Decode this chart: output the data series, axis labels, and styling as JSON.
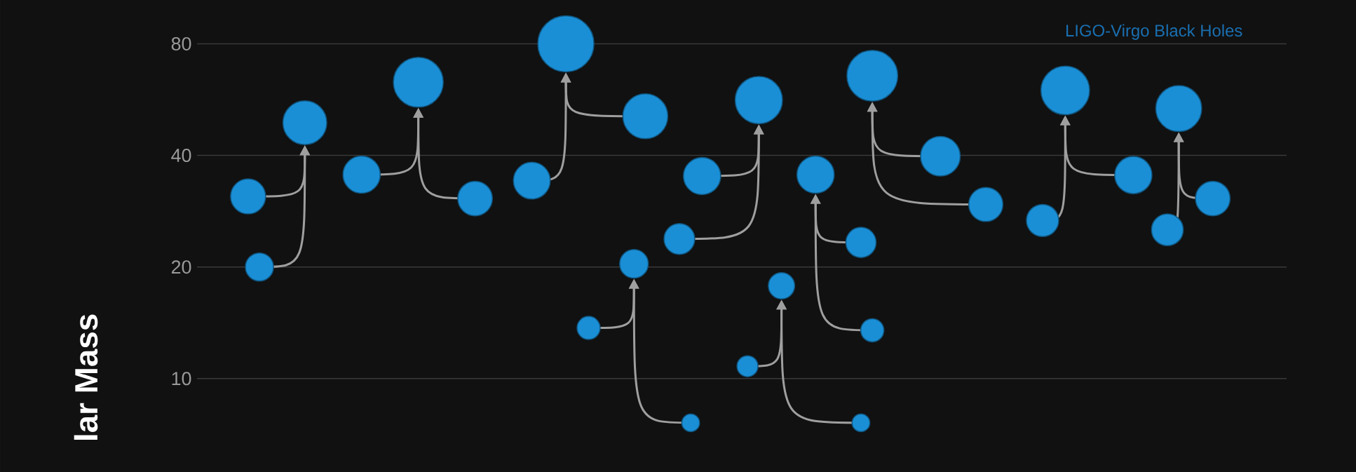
{
  "chart_data": {
    "type": "bubble",
    "ylabel": "lar Mass",
    "annotations": [
      "LIGO-Virgo Black Holes"
    ],
    "log": "y",
    "grid": "y",
    "tick_labels": "y",
    "ylim": [
      5.6,
      105
    ],
    "yticks": [
      10,
      20,
      40,
      80
    ],
    "categories": [
      null,
      null,
      null,
      null,
      null,
      null,
      null,
      null,
      null,
      null,
      null,
      null,
      null,
      null,
      null,
      null,
      null,
      null,
      null,
      null,
      null,
      null,
      null,
      null,
      null,
      null,
      null,
      null,
      null,
      null,
      null,
      null,
      null,
      null,
      null,
      null,
      null,
      null,
      null,
      null,
      null,
      null,
      null,
      null,
      null,
      null,
      null,
      null,
      null,
      null,
      null,
      null,
      null,
      null,
      null,
      null,
      null,
      null,
      null,
      null,
      null,
      null,
      null,
      null,
      null,
      null,
      null,
      null,
      null,
      null,
      null,
      null,
      null,
      null,
      null,
      null,
      null,
      null,
      null,
      null,
      null,
      null,
      null,
      null,
      null,
      null,
      null,
      null,
      null,
      null,
      null,
      null,
      null,
      null,
      null,
      null
    ],
    "series": [
      {
        "color": "#1a8fd6",
        "values": [
          null,
          null,
          null,
          null,
          31,
          20,
          null,
          null,
          null,
          49,
          null,
          null,
          null,
          null,
          null,
          null,
          null,
          null,
          null,
          null,
          null,
          null,
          null,
          null,
          null,
          null,
          null,
          null,
          null,
          null,
          null,
          null,
          null,
          null,
          null,
          null,
          null,
          null,
          null,
          null,
          null,
          null,
          null,
          null,
          null,
          null,
          null,
          null,
          null,
          null,
          null,
          null,
          null,
          null,
          null,
          null,
          null,
          null,
          null,
          null,
          null,
          null,
          null,
          null,
          null,
          null,
          null,
          null,
          null,
          null,
          null,
          null,
          null,
          null,
          null,
          null,
          null,
          null,
          null,
          null,
          null,
          null,
          null,
          null,
          null,
          null,
          null,
          null,
          null,
          null,
          null,
          null,
          null,
          null,
          null,
          null
        ],
        "sizes": [
          null,
          null,
          null,
          null,
          0.39,
          0.25,
          null,
          null,
          null,
          0.61,
          null,
          null,
          null,
          null,
          null,
          null,
          null,
          null,
          null,
          null,
          null,
          null,
          null,
          null,
          null,
          null,
          null,
          null,
          null,
          null,
          null,
          null,
          null,
          null,
          null,
          null,
          null,
          null,
          null,
          null,
          null,
          null,
          null,
          null,
          null,
          null,
          null,
          null,
          null,
          null,
          null,
          null,
          null,
          null,
          null,
          null,
          null,
          null,
          null,
          null,
          null,
          null,
          null,
          null,
          null,
          null,
          null,
          null,
          null,
          null,
          null,
          null,
          null,
          null,
          null,
          null,
          null,
          null,
          null,
          null,
          null,
          null,
          null,
          null,
          null,
          null,
          null,
          null,
          null,
          null,
          null,
          null,
          null,
          null,
          null,
          null
        ]
      },
      {
        "color": "#1a8fd6",
        "values": [
          null,
          null,
          null,
          null,
          null,
          null,
          null,
          null,
          null,
          null,
          null,
          null,
          null,
          null,
          35.5,
          null,
          null,
          null,
          null,
          63,
          null,
          null,
          null,
          null,
          30.6,
          null,
          null,
          null,
          null,
          null,
          null,
          null,
          null,
          null,
          null,
          null,
          null,
          null,
          null,
          null,
          null,
          null,
          null,
          null,
          null,
          null,
          null,
          null,
          null,
          null,
          null,
          null,
          null,
          null,
          null,
          null,
          null,
          null,
          null,
          null,
          null,
          null,
          null,
          null,
          null,
          null,
          null,
          null,
          null,
          null,
          null,
          null,
          null,
          null,
          null,
          null,
          null,
          null,
          null,
          null,
          null,
          null,
          null,
          null,
          null,
          null,
          null,
          null,
          null,
          null,
          null,
          null,
          null,
          null,
          null,
          null
        ],
        "sizes": [
          null,
          null,
          null,
          null,
          null,
          null,
          null,
          null,
          null,
          null,
          null,
          null,
          null,
          null,
          0.44,
          null,
          null,
          null,
          null,
          0.79,
          null,
          null,
          null,
          null,
          0.38,
          null,
          null,
          null,
          null,
          null,
          null,
          null,
          null,
          null,
          null,
          null,
          null,
          null,
          null,
          null,
          null,
          null,
          null,
          null,
          null,
          null,
          null,
          null,
          null,
          null,
          null,
          null,
          null,
          null,
          null,
          null,
          null,
          null,
          null,
          null,
          null,
          null,
          null,
          null,
          null,
          null,
          null,
          null,
          null,
          null,
          null,
          null,
          null,
          null,
          null,
          null,
          null,
          null,
          null,
          null,
          null,
          null,
          null,
          null,
          null,
          null,
          null,
          null,
          null,
          null,
          null,
          null,
          null,
          null,
          null,
          null
        ]
      },
      {
        "color": "#1a8fd6",
        "values": [
          null,
          null,
          null,
          null,
          null,
          null,
          null,
          null,
          null,
          null,
          null,
          null,
          null,
          null,
          null,
          null,
          null,
          null,
          null,
          null,
          null,
          null,
          null,
          null,
          null,
          null,
          null,
          null,
          null,
          34.2,
          null,
          null,
          80,
          null,
          null,
          null,
          null,
          null,
          null,
          51,
          null,
          null,
          null,
          null,
          null,
          null,
          null,
          null,
          null,
          null,
          null,
          null,
          null,
          null,
          null,
          null,
          null,
          null,
          null,
          null,
          null,
          null,
          null,
          null,
          null,
          null,
          null,
          null,
          null,
          null,
          null,
          null,
          null,
          null,
          null,
          null,
          null,
          null,
          null,
          null,
          null,
          null,
          null,
          null,
          null,
          null,
          null,
          null,
          null,
          null,
          null,
          null,
          null,
          null,
          null,
          null
        ],
        "sizes": [
          null,
          null,
          null,
          null,
          null,
          null,
          null,
          null,
          null,
          null,
          null,
          null,
          null,
          null,
          null,
          null,
          null,
          null,
          null,
          null,
          null,
          null,
          null,
          null,
          null,
          null,
          null,
          null,
          null,
          0.43,
          null,
          null,
          1.0,
          null,
          null,
          null,
          null,
          null,
          null,
          0.64,
          null,
          null,
          null,
          null,
          null,
          null,
          null,
          null,
          null,
          null,
          null,
          null,
          null,
          null,
          null,
          null,
          null,
          null,
          null,
          null,
          null,
          null,
          null,
          null,
          null,
          null,
          null,
          null,
          null,
          null,
          null,
          null,
          null,
          null,
          null,
          null,
          null,
          null,
          null,
          null,
          null,
          null,
          null,
          null,
          null,
          null,
          null,
          null,
          null,
          null,
          null,
          null,
          null,
          null,
          null,
          null
        ]
      },
      {
        "color": "#1a8fd6",
        "values": [
          null,
          null,
          null,
          null,
          null,
          null,
          null,
          null,
          null,
          null,
          null,
          null,
          null,
          null,
          null,
          null,
          null,
          null,
          null,
          null,
          null,
          null,
          null,
          null,
          null,
          null,
          null,
          null,
          null,
          null,
          null,
          null,
          null,
          null,
          13.7,
          null,
          null,
          null,
          20.4,
          null,
          null,
          null,
          null,
          7.6,
          null,
          null,
          null,
          null,
          null,
          null,
          null,
          null,
          null,
          null,
          null,
          null,
          null,
          null,
          null,
          null,
          null,
          null,
          null,
          null,
          null,
          null,
          null,
          null,
          null,
          null,
          null,
          null,
          null,
          null,
          null,
          null,
          null,
          null,
          null,
          null,
          null,
          null,
          null,
          null,
          null,
          null,
          null,
          null,
          null,
          null,
          null,
          null,
          null,
          null,
          null,
          null
        ],
        "sizes": [
          null,
          null,
          null,
          null,
          null,
          null,
          null,
          null,
          null,
          null,
          null,
          null,
          null,
          null,
          null,
          null,
          null,
          null,
          null,
          null,
          null,
          null,
          null,
          null,
          null,
          null,
          null,
          null,
          null,
          null,
          null,
          null,
          null,
          null,
          0.17,
          null,
          null,
          null,
          0.26,
          null,
          null,
          null,
          null,
          0.1,
          null,
          null,
          null,
          null,
          null,
          null,
          null,
          null,
          null,
          null,
          null,
          null,
          null,
          null,
          null,
          null,
          null,
          null,
          null,
          null,
          null,
          null,
          null,
          null,
          null,
          null,
          null,
          null,
          null,
          null,
          null,
          null,
          null,
          null,
          null,
          null,
          null,
          null,
          null,
          null,
          null,
          null,
          null,
          null,
          null,
          null,
          null,
          null,
          null,
          null,
          null,
          null
        ]
      },
      {
        "color": "#1a8fd6",
        "values": [
          null,
          null,
          null,
          null,
          null,
          null,
          null,
          null,
          null,
          null,
          null,
          null,
          null,
          null,
          null,
          null,
          null,
          null,
          null,
          null,
          null,
          null,
          null,
          null,
          null,
          null,
          null,
          null,
          null,
          null,
          null,
          null,
          null,
          null,
          null,
          null,
          null,
          null,
          null,
          null,
          null,
          null,
          23.8,
          null,
          35.2,
          null,
          null,
          null,
          null,
          56.4,
          null,
          null,
          null,
          null,
          null,
          null,
          null,
          null,
          null,
          null,
          null,
          null,
          null,
          null,
          null,
          null,
          null,
          null,
          null,
          null,
          null,
          null,
          null,
          null,
          null,
          null,
          null,
          null,
          null,
          null,
          null,
          null,
          null,
          null,
          null,
          null,
          null,
          null,
          null,
          null,
          null,
          null,
          null,
          null,
          null,
          null
        ],
        "sizes": [
          null,
          null,
          null,
          null,
          null,
          null,
          null,
          null,
          null,
          null,
          null,
          null,
          null,
          null,
          null,
          null,
          null,
          null,
          null,
          null,
          null,
          null,
          null,
          null,
          null,
          null,
          null,
          null,
          null,
          null,
          null,
          null,
          null,
          null,
          null,
          null,
          null,
          null,
          null,
          null,
          null,
          null,
          0.3,
          null,
          0.44,
          null,
          null,
          null,
          null,
          0.71,
          null,
          null,
          null,
          null,
          null,
          null,
          null,
          null,
          null,
          null,
          null,
          null,
          null,
          null,
          null,
          null,
          null,
          null,
          null,
          null,
          null,
          null,
          null,
          null,
          null,
          null,
          null,
          null,
          null,
          null,
          null,
          null,
          null,
          null,
          null,
          null,
          null,
          null,
          null,
          null,
          null,
          null,
          null,
          null,
          null,
          null
        ]
      },
      {
        "color": "#1a8fd6",
        "values": [
          null,
          null,
          null,
          null,
          null,
          null,
          null,
          null,
          null,
          null,
          null,
          null,
          null,
          null,
          null,
          null,
          null,
          null,
          null,
          null,
          null,
          null,
          null,
          null,
          null,
          null,
          null,
          null,
          null,
          null,
          null,
          null,
          null,
          null,
          null,
          null,
          null,
          null,
          null,
          null,
          null,
          null,
          null,
          null,
          null,
          null,
          null,
          null,
          10.8,
          null,
          null,
          17.8,
          null,
          null,
          null,
          null,
          null,
          null,
          7.6,
          null,
          null,
          null,
          null,
          null,
          null,
          null,
          null,
          null,
          null,
          null,
          null,
          null,
          null,
          null,
          null,
          null,
          null,
          null,
          null,
          null,
          null,
          null,
          null,
          null,
          null,
          null,
          null,
          null,
          null,
          null,
          null,
          null,
          null,
          null,
          null,
          null
        ],
        "sizes": [
          null,
          null,
          null,
          null,
          null,
          null,
          null,
          null,
          null,
          null,
          null,
          null,
          null,
          null,
          null,
          null,
          null,
          null,
          null,
          null,
          null,
          null,
          null,
          null,
          null,
          null,
          null,
          null,
          null,
          null,
          null,
          null,
          null,
          null,
          null,
          null,
          null,
          null,
          null,
          null,
          null,
          null,
          null,
          null,
          null,
          null,
          null,
          null,
          0.14,
          null,
          null,
          0.22,
          null,
          null,
          null,
          null,
          null,
          null,
          0.1,
          null,
          null,
          null,
          null,
          null,
          null,
          null,
          null,
          null,
          null,
          null,
          null,
          null,
          null,
          null,
          null,
          null,
          null,
          null,
          null,
          null,
          null,
          null,
          null,
          null,
          null,
          null,
          null,
          null,
          null,
          null,
          null,
          null,
          null,
          null,
          null,
          null
        ]
      },
      {
        "color": "#1a8fd6",
        "values": [
          null,
          null,
          null,
          null,
          null,
          null,
          null,
          null,
          null,
          null,
          null,
          null,
          null,
          null,
          null,
          null,
          null,
          null,
          null,
          null,
          null,
          null,
          null,
          null,
          null,
          null,
          null,
          null,
          null,
          null,
          null,
          null,
          null,
          null,
          null,
          null,
          null,
          null,
          null,
          null,
          null,
          null,
          null,
          null,
          null,
          null,
          null,
          null,
          null,
          null,
          null,
          null,
          null,
          null,
          35.5,
          null,
          null,
          null,
          23.3,
          13.5,
          null,
          null,
          null,
          null,
          null,
          null,
          null,
          null,
          null,
          null,
          null,
          null,
          null,
          null,
          null,
          null,
          null,
          null,
          null,
          null,
          null,
          null,
          null,
          null,
          null,
          null,
          null,
          null,
          null,
          null,
          null,
          null,
          null,
          null,
          null,
          null
        ],
        "sizes": [
          null,
          null,
          null,
          null,
          null,
          null,
          null,
          null,
          null,
          null,
          null,
          null,
          null,
          null,
          null,
          null,
          null,
          null,
          null,
          null,
          null,
          null,
          null,
          null,
          null,
          null,
          null,
          null,
          null,
          null,
          null,
          null,
          null,
          null,
          null,
          null,
          null,
          null,
          null,
          null,
          null,
          null,
          null,
          null,
          null,
          null,
          null,
          null,
          null,
          null,
          null,
          null,
          null,
          null,
          0.44,
          null,
          null,
          null,
          0.29,
          0.17,
          null,
          null,
          null,
          null,
          null,
          null,
          null,
          null,
          null,
          null,
          null,
          null,
          null,
          null,
          null,
          null,
          null,
          null,
          null,
          null,
          null,
          null,
          null,
          null,
          null,
          null,
          null,
          null,
          null,
          null,
          null,
          null,
          null,
          null,
          null,
          null
        ]
      },
      {
        "color": "#1a8fd6",
        "values": [
          null,
          null,
          null,
          null,
          null,
          null,
          null,
          null,
          null,
          null,
          null,
          null,
          null,
          null,
          null,
          null,
          null,
          null,
          null,
          null,
          null,
          null,
          null,
          null,
          null,
          null,
          null,
          null,
          null,
          null,
          null,
          null,
          null,
          null,
          null,
          null,
          null,
          null,
          null,
          null,
          null,
          null,
          null,
          null,
          null,
          null,
          null,
          null,
          null,
          null,
          null,
          null,
          null,
          null,
          null,
          null,
          null,
          null,
          null,
          65.6,
          null,
          null,
          null,
          null,
          null,
          39.8,
          null,
          null,
          null,
          29.5,
          null,
          null,
          null,
          null,
          null,
          null,
          null,
          null,
          null,
          null,
          null,
          null,
          null,
          null,
          null,
          null,
          null,
          null,
          null,
          null,
          null,
          null,
          null,
          null,
          null,
          null
        ],
        "sizes": [
          null,
          null,
          null,
          null,
          null,
          null,
          null,
          null,
          null,
          null,
          null,
          null,
          null,
          null,
          null,
          null,
          null,
          null,
          null,
          null,
          null,
          null,
          null,
          null,
          null,
          null,
          null,
          null,
          null,
          null,
          null,
          null,
          null,
          null,
          null,
          null,
          null,
          null,
          null,
          null,
          null,
          null,
          null,
          null,
          null,
          null,
          null,
          null,
          null,
          null,
          null,
          null,
          null,
          null,
          null,
          null,
          null,
          null,
          null,
          0.82,
          null,
          null,
          null,
          null,
          null,
          0.5,
          null,
          null,
          null,
          0.37,
          null,
          null,
          null,
          null,
          null,
          null,
          null,
          null,
          null,
          null,
          null,
          null,
          null,
          null,
          null,
          null,
          null,
          null,
          null,
          null,
          null,
          null,
          null,
          null,
          null,
          null
        ]
      },
      {
        "color": "#1a8fd6",
        "values": [
          null,
          null,
          null,
          null,
          null,
          null,
          null,
          null,
          null,
          null,
          null,
          null,
          null,
          null,
          null,
          null,
          null,
          null,
          null,
          null,
          null,
          null,
          null,
          null,
          null,
          null,
          null,
          null,
          null,
          null,
          null,
          null,
          null,
          null,
          null,
          null,
          null,
          null,
          null,
          null,
          null,
          null,
          null,
          null,
          null,
          null,
          null,
          null,
          null,
          null,
          null,
          null,
          null,
          null,
          null,
          null,
          null,
          null,
          null,
          null,
          null,
          null,
          null,
          null,
          null,
          null,
          null,
          null,
          null,
          null,
          null,
          null,
          null,
          null,
          26.7,
          null,
          59.9,
          null,
          null,
          null,
          null,
          null,
          35.4,
          null,
          null,
          null,
          null,
          null,
          null,
          null,
          null,
          null,
          null,
          null,
          null,
          null
        ],
        "sizes": [
          null,
          null,
          null,
          null,
          null,
          null,
          null,
          null,
          null,
          null,
          null,
          null,
          null,
          null,
          null,
          null,
          null,
          null,
          null,
          null,
          null,
          null,
          null,
          null,
          null,
          null,
          null,
          null,
          null,
          null,
          null,
          null,
          null,
          null,
          null,
          null,
          null,
          null,
          null,
          null,
          null,
          null,
          null,
          null,
          null,
          null,
          null,
          null,
          null,
          null,
          null,
          null,
          null,
          null,
          null,
          null,
          null,
          null,
          null,
          null,
          null,
          null,
          null,
          null,
          null,
          null,
          null,
          null,
          null,
          null,
          null,
          null,
          null,
          null,
          0.33,
          null,
          0.75,
          null,
          null,
          null,
          null,
          null,
          0.44,
          null,
          null,
          null,
          null,
          null,
          null,
          null,
          null,
          null,
          null,
          null,
          null,
          null
        ]
      },
      {
        "color": "#1a8fd6",
        "values": [
          null,
          null,
          null,
          null,
          null,
          null,
          null,
          null,
          null,
          null,
          null,
          null,
          null,
          null,
          null,
          null,
          null,
          null,
          null,
          null,
          null,
          null,
          null,
          null,
          null,
          null,
          null,
          null,
          null,
          null,
          null,
          null,
          null,
          null,
          null,
          null,
          null,
          null,
          null,
          null,
          null,
          null,
          null,
          null,
          null,
          null,
          null,
          null,
          null,
          null,
          null,
          null,
          null,
          null,
          null,
          null,
          null,
          null,
          null,
          null,
          null,
          null,
          null,
          null,
          null,
          null,
          null,
          null,
          null,
          null,
          null,
          null,
          null,
          null,
          null,
          null,
          null,
          null,
          null,
          null,
          null,
          null,
          null,
          null,
          null,
          25.2,
          53.5,
          null,
          null,
          30.6,
          null,
          null,
          null,
          null,
          null,
          null
        ],
        "sizes": [
          null,
          null,
          null,
          null,
          null,
          null,
          null,
          null,
          null,
          null,
          null,
          null,
          null,
          null,
          null,
          null,
          null,
          null,
          null,
          null,
          null,
          null,
          null,
          null,
          null,
          null,
          null,
          null,
          null,
          null,
          null,
          null,
          null,
          null,
          null,
          null,
          null,
          null,
          null,
          null,
          null,
          null,
          null,
          null,
          null,
          null,
          null,
          null,
          null,
          null,
          null,
          null,
          null,
          null,
          null,
          null,
          null,
          null,
          null,
          null,
          null,
          null,
          null,
          null,
          null,
          null,
          null,
          null,
          null,
          null,
          null,
          null,
          null,
          null,
          null,
          null,
          null,
          null,
          null,
          null,
          null,
          null,
          null,
          null,
          null,
          0.32,
          0.67,
          null,
          null,
          0.38,
          null,
          null,
          null,
          null,
          null,
          null
        ]
      }
    ]
  }
}
